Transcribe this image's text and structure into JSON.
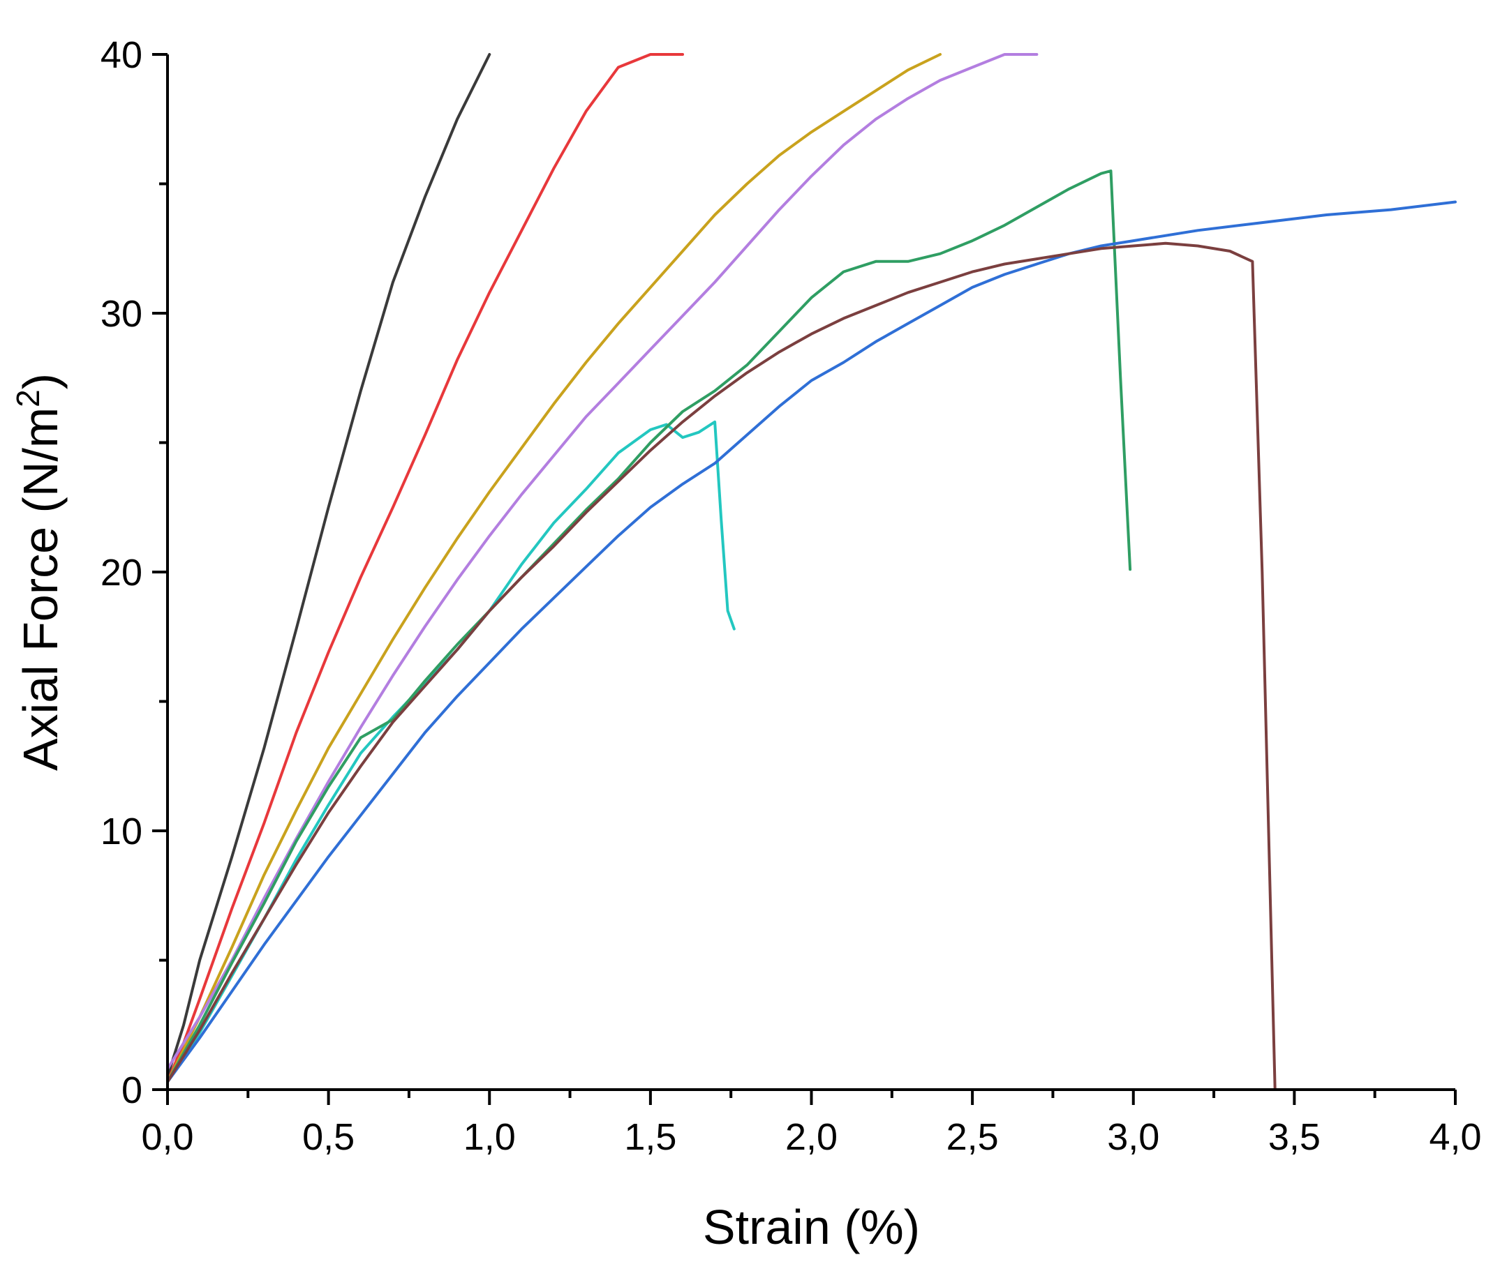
{
  "chart_data": {
    "type": "line",
    "title": "",
    "xlabel": "Strain (%)",
    "ylabel_main": "Axial Force (N/m",
    "ylabel_sup": "2",
    "ylabel_close": ")",
    "xlim": [
      0,
      4
    ],
    "ylim": [
      0,
      40
    ],
    "x_ticks": [
      {
        "value": 0,
        "label": "0,0"
      },
      {
        "value": 0.5,
        "label": "0,5"
      },
      {
        "value": 1,
        "label": "1,0"
      },
      {
        "value": 1.5,
        "label": "1,5"
      },
      {
        "value": 2,
        "label": "2,0"
      },
      {
        "value": 2.5,
        "label": "2,5"
      },
      {
        "value": 3,
        "label": "3,0"
      },
      {
        "value": 3.5,
        "label": "3,5"
      },
      {
        "value": 4,
        "label": "4,0"
      }
    ],
    "y_ticks": [
      {
        "value": 0,
        "label": "0"
      },
      {
        "value": 10,
        "label": "10"
      },
      {
        "value": 20,
        "label": "20"
      },
      {
        "value": 30,
        "label": "30"
      },
      {
        "value": 40,
        "label": "40"
      }
    ],
    "x_minor_step": 0.25,
    "y_minor_step": 5,
    "grid": false,
    "legend": "none",
    "series": [
      {
        "color": "#3a3a3a",
        "x": [
          0,
          0.05,
          0.1,
          0.2,
          0.3,
          0.4,
          0.5,
          0.6,
          0.7,
          0.8,
          0.9,
          1.0
        ],
        "y": [
          0.5,
          2.5,
          5,
          9,
          13.2,
          17.8,
          22.5,
          27,
          31.2,
          34.5,
          37.5,
          40
        ]
      },
      {
        "color": "#e8383b",
        "x": [
          0,
          0.05,
          0.1,
          0.2,
          0.3,
          0.4,
          0.5,
          0.6,
          0.7,
          0.8,
          0.9,
          1.0,
          1.1,
          1.2,
          1.3,
          1.4,
          1.5,
          1.6
        ],
        "y": [
          0.3,
          1.8,
          3.5,
          7,
          10.3,
          13.8,
          16.9,
          19.8,
          22.5,
          25.3,
          28.2,
          30.8,
          33.2,
          35.6,
          37.8,
          39.5,
          40,
          40
        ]
      },
      {
        "color": "#c9a21d",
        "x": [
          0,
          0.1,
          0.2,
          0.3,
          0.4,
          0.5,
          0.6,
          0.7,
          0.8,
          0.9,
          1.0,
          1.1,
          1.2,
          1.3,
          1.4,
          1.5,
          1.6,
          1.7,
          1.8,
          1.9,
          2.0,
          2.1,
          2.2,
          2.3,
          2.4
        ],
        "y": [
          0.3,
          2.8,
          5.5,
          8.3,
          10.8,
          13.2,
          15.3,
          17.4,
          19.4,
          21.3,
          23.1,
          24.8,
          26.5,
          28.1,
          29.6,
          31.0,
          32.4,
          33.8,
          35.0,
          36.1,
          37.0,
          37.8,
          38.6,
          39.4,
          40.0
        ]
      },
      {
        "color": "#b37ee0",
        "x": [
          0,
          0.1,
          0.2,
          0.3,
          0.4,
          0.5,
          0.6,
          0.7,
          0.8,
          0.9,
          1.0,
          1.1,
          1.2,
          1.3,
          1.4,
          1.5,
          1.6,
          1.7,
          1.8,
          1.9,
          2.0,
          2.1,
          2.2,
          2.3,
          2.4,
          2.5,
          2.6,
          2.7
        ],
        "y": [
          0.8,
          2.8,
          5,
          7.4,
          9.7,
          11.9,
          14.0,
          16.0,
          17.9,
          19.7,
          21.4,
          23.0,
          24.5,
          26.0,
          27.3,
          28.6,
          29.9,
          31.2,
          32.6,
          34.0,
          35.3,
          36.5,
          37.5,
          38.3,
          39.0,
          39.5,
          40.0,
          40.0
        ]
      },
      {
        "color": "#23c7c0",
        "x": [
          0,
          0.1,
          0.2,
          0.3,
          0.4,
          0.5,
          0.6,
          0.7,
          0.8,
          0.9,
          1.0,
          1.1,
          1.2,
          1.3,
          1.4,
          1.5,
          1.55,
          1.6,
          1.65,
          1.7,
          1.72,
          1.74,
          1.76
        ],
        "y": [
          0.3,
          2.2,
          4.4,
          6.6,
          8.9,
          11.0,
          13.0,
          14.4,
          15.7,
          17.0,
          18.5,
          20.3,
          21.9,
          23.2,
          24.6,
          25.5,
          25.7,
          25.2,
          25.4,
          25.8,
          22.0,
          18.5,
          17.8
        ]
      },
      {
        "color": "#2f9e63",
        "x": [
          0,
          0.1,
          0.2,
          0.3,
          0.4,
          0.5,
          0.6,
          0.7,
          0.8,
          0.9,
          1.0,
          1.1,
          1.2,
          1.3,
          1.4,
          1.5,
          1.6,
          1.7,
          1.8,
          1.9,
          2.0,
          2.1,
          2.2,
          2.3,
          2.4,
          2.5,
          2.6,
          2.7,
          2.8,
          2.9,
          2.93,
          2.96,
          2.99
        ],
        "y": [
          0.3,
          2.5,
          4.9,
          7.2,
          9.6,
          11.7,
          13.6,
          14.3,
          15.8,
          17.2,
          18.5,
          19.8,
          21.1,
          22.4,
          23.6,
          25.0,
          26.2,
          27.0,
          28.0,
          29.3,
          30.6,
          31.6,
          32.0,
          32.0,
          32.3,
          32.8,
          33.4,
          34.1,
          34.8,
          35.4,
          35.5,
          27.5,
          20.1
        ]
      },
      {
        "color": "#2f6fd6",
        "x": [
          0,
          0.1,
          0.2,
          0.3,
          0.4,
          0.5,
          0.6,
          0.7,
          0.8,
          0.9,
          1.0,
          1.1,
          1.2,
          1.3,
          1.4,
          1.5,
          1.6,
          1.7,
          1.8,
          1.9,
          2.0,
          2.1,
          2.2,
          2.3,
          2.4,
          2.5,
          2.6,
          2.7,
          2.8,
          2.9,
          3.0,
          3.2,
          3.4,
          3.6,
          3.8,
          4.0
        ],
        "y": [
          0.3,
          2.0,
          3.8,
          5.6,
          7.3,
          9.0,
          10.6,
          12.2,
          13.8,
          15.2,
          16.5,
          17.8,
          19.0,
          20.2,
          21.4,
          22.5,
          23.4,
          24.2,
          25.3,
          26.4,
          27.4,
          28.1,
          28.9,
          29.6,
          30.3,
          31.0,
          31.5,
          31.9,
          32.3,
          32.6,
          32.8,
          33.2,
          33.5,
          33.8,
          34.0,
          34.3
        ]
      },
      {
        "color": "#7b3f3f",
        "x": [
          0,
          0.1,
          0.2,
          0.3,
          0.4,
          0.5,
          0.6,
          0.7,
          0.8,
          0.9,
          1.0,
          1.1,
          1.2,
          1.3,
          1.4,
          1.5,
          1.6,
          1.7,
          1.8,
          1.9,
          2.0,
          2.1,
          2.2,
          2.3,
          2.4,
          2.5,
          2.6,
          2.7,
          2.8,
          2.9,
          3.0,
          3.1,
          3.2,
          3.3,
          3.37,
          3.4,
          3.43,
          3.44
        ],
        "y": [
          0.3,
          2.3,
          4.5,
          6.6,
          8.7,
          10.7,
          12.5,
          14.2,
          15.6,
          17.0,
          18.5,
          19.8,
          21.0,
          22.3,
          23.5,
          24.7,
          25.8,
          26.8,
          27.7,
          28.5,
          29.2,
          29.8,
          30.3,
          30.8,
          31.2,
          31.6,
          31.9,
          32.1,
          32.3,
          32.5,
          32.6,
          32.7,
          32.6,
          32.4,
          32.0,
          20,
          5,
          0
        ]
      }
    ]
  }
}
